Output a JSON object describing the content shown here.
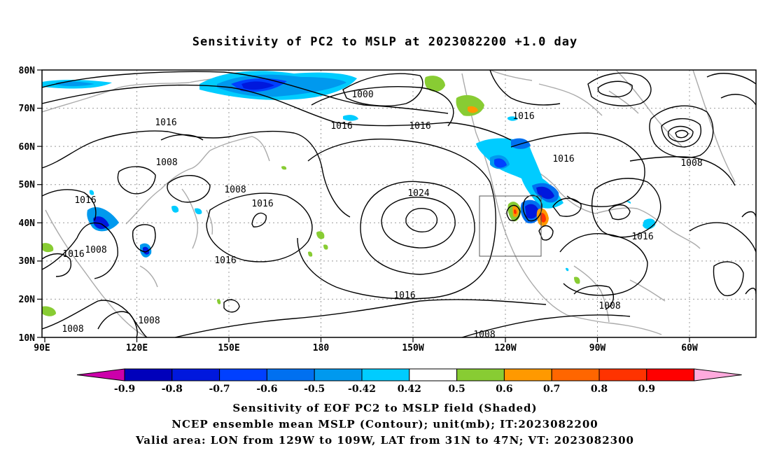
{
  "title": "Sensitivity of PC2 to MSLP at 2023082200 +1.0 day",
  "lat_labels": [
    "80N",
    "70N",
    "60N",
    "50N",
    "40N",
    "30N",
    "20N",
    "10N"
  ],
  "lon_labels": [
    "90E",
    "120E",
    "150E",
    "180",
    "150W",
    "120W",
    "90W",
    "60W"
  ],
  "contour_labels": {
    "c1000": "1000",
    "c1024": "1024",
    "c1016": "1016",
    "c1008": "1008"
  },
  "colorbar": {
    "labels": [
      "-0.9",
      "-0.8",
      "-0.7",
      "-0.6",
      "-0.5",
      "-0.42",
      "0.42",
      "0.5",
      "0.6",
      "0.7",
      "0.8",
      "0.9"
    ],
    "colors": [
      "#cc00aa",
      "#0000bb",
      "#0018dd",
      "#0040ff",
      "#0070f0",
      "#0099ee",
      "#00ccff",
      "#ffffff",
      "#88cc33",
      "#ff9900",
      "#ff6600",
      "#ff3300",
      "#ff0000",
      "#ffaadd"
    ]
  },
  "footer": {
    "line1": "Sensitivity of EOF PC2 to MSLP field (Shaded)",
    "line2": "NCEP ensemble mean MSLP (Contour); unit(mb); IT:2023082200",
    "line3": "Valid area: LON from 129W to 109W, LAT from 31N to 47N; VT: 2023082300"
  }
}
